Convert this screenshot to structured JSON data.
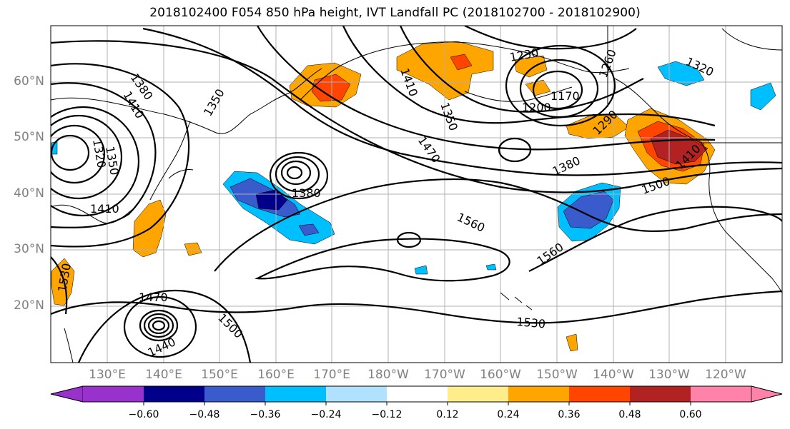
{
  "title": "2018102400 F054 850 hPa height, IVT Landfall PC (2018102700 - 2018102900)",
  "lat_labels": [
    "60°N",
    "50°N",
    "40°N",
    "30°N",
    "20°N"
  ],
  "lon_labels": [
    "130°E",
    "140°E",
    "150°E",
    "160°E",
    "170°E",
    "180°W",
    "170°W",
    "160°W",
    "150°W",
    "140°W",
    "130°W",
    "120°W"
  ],
  "contour_labels": [
    "1380",
    "1410",
    "1350",
    "1320",
    "1350",
    "1410",
    "1380",
    "1410",
    "1350",
    "1230",
    "1200",
    "1170",
    "1260",
    "1320",
    "1290",
    "1470",
    "1380",
    "1500",
    "1410",
    "1560",
    "1560",
    "1530",
    "1530",
    "1470",
    "1500",
    "1440"
  ],
  "colorbar": {
    "tick_labels": [
      "−0.60",
      "−0.48",
      "−0.36",
      "−0.24",
      "−0.12",
      "0.12",
      "0.24",
      "0.36",
      "0.48",
      "0.60"
    ],
    "colors": [
      "#9932cc",
      "#00008b",
      "#3a5bcc",
      "#00bfff",
      "#b0e2ff",
      "#ffffff",
      "#ffec8b",
      "#ffa500",
      "#ff4500",
      "#b22222",
      "#ff82ab"
    ]
  }
}
